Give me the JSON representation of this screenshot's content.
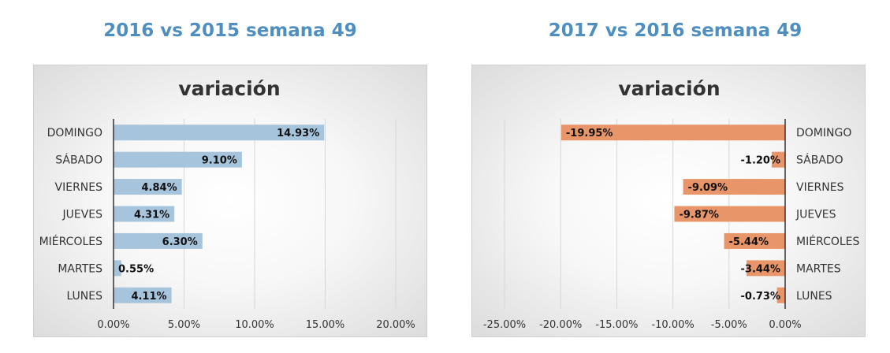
{
  "colors": {
    "heading": "#4e8fc0",
    "left_bar": "#a7c4dd",
    "right_bar": "#e8956a",
    "grid": "#d6d6d6",
    "axis": "#333333"
  },
  "chart_data": [
    {
      "type": "bar",
      "orientation": "horizontal",
      "heading": "2016 vs 2015 semana 49",
      "title": "variación",
      "categories": [
        "DOMINGO",
        "SÁBADO",
        "VIERNES",
        "JUEVES",
        "MIÉRCOLES",
        "MARTES",
        "LUNES"
      ],
      "values": [
        14.93,
        9.1,
        4.84,
        4.31,
        6.3,
        0.55,
        4.11
      ],
      "value_labels": [
        "14.93%",
        "9.10%",
        "4.84%",
        "4.31%",
        "6.30%",
        "0.55%",
        "4.11%"
      ],
      "xlim": [
        0,
        20
      ],
      "xticks": [
        "0.00%",
        "5.00%",
        "10.00%",
        "15.00%",
        "20.00%"
      ],
      "grid": true,
      "legend": "none"
    },
    {
      "type": "bar",
      "orientation": "horizontal",
      "heading": "2017 vs 2016 semana 49",
      "title": "variación",
      "categories": [
        "DOMINGO",
        "SÁBADO",
        "VIERNES",
        "JUEVES",
        "MIÉRCOLES",
        "MARTES",
        "LUNES"
      ],
      "values": [
        -19.95,
        -1.2,
        -9.09,
        -9.87,
        -5.44,
        -3.44,
        -0.73
      ],
      "value_labels": [
        "-19.95%",
        "-1.20%",
        "-9.09%",
        "-9.87%",
        "-5.44%",
        "-3.44%",
        "-0.73%"
      ],
      "xlim": [
        -25,
        0
      ],
      "xticks": [
        "-25.00%",
        "-20.00%",
        "-15.00%",
        "-10.00%",
        "-5.00%",
        "0.00%"
      ],
      "grid": true,
      "legend": "none"
    }
  ]
}
